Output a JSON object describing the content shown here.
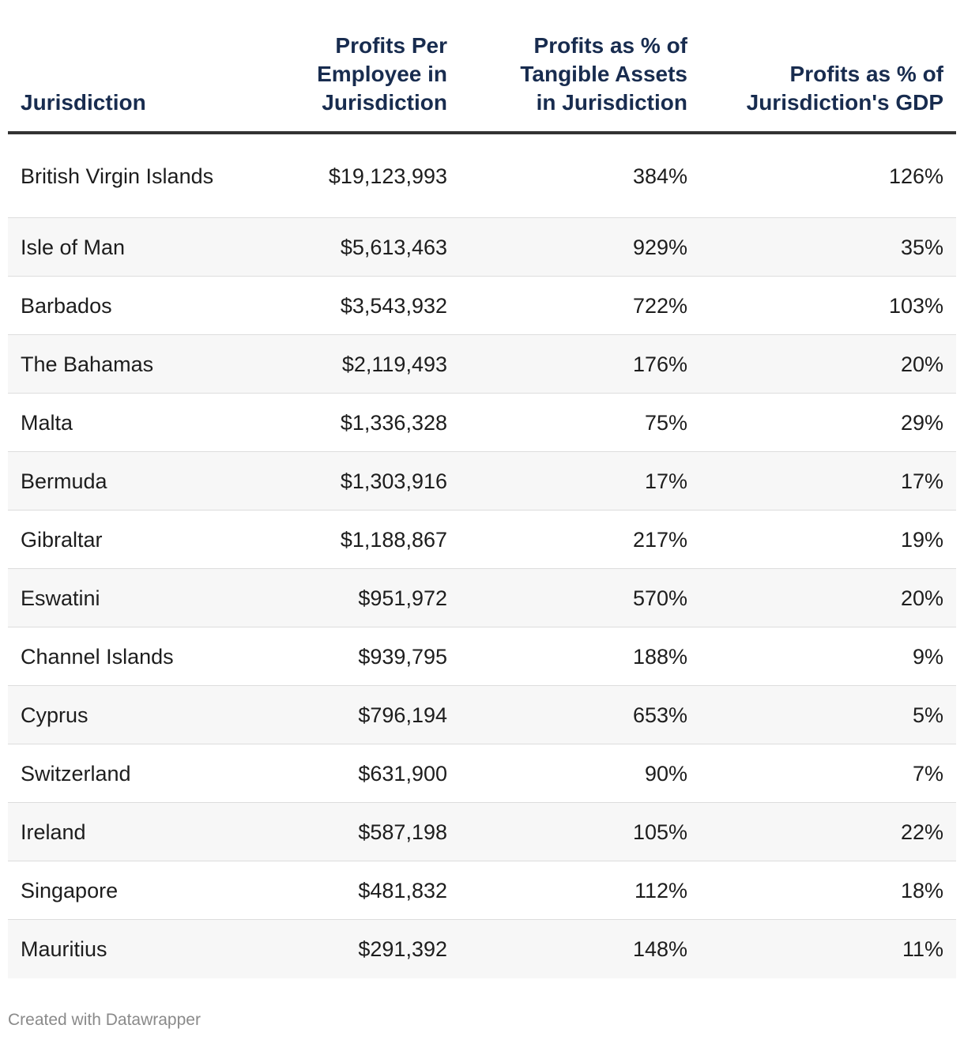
{
  "chart_data": {
    "type": "table",
    "columns": [
      "Jurisdiction",
      "Profits Per\nEmployee in\nJurisdiction",
      "Profits as % of\nTangible Assets\nin Jurisdiction",
      "Profits as % of\nJurisdiction's GDP"
    ],
    "rows": [
      {
        "jurisdiction": "British Virgin Islands",
        "profits_per_employee": "$19,123,993",
        "pct_tangible_assets": "384%",
        "pct_gdp": "126%"
      },
      {
        "jurisdiction": "Isle of Man",
        "profits_per_employee": "$5,613,463",
        "pct_tangible_assets": "929%",
        "pct_gdp": "35%"
      },
      {
        "jurisdiction": "Barbados",
        "profits_per_employee": "$3,543,932",
        "pct_tangible_assets": "722%",
        "pct_gdp": "103%"
      },
      {
        "jurisdiction": "The Bahamas",
        "profits_per_employee": "$2,119,493",
        "pct_tangible_assets": "176%",
        "pct_gdp": "20%"
      },
      {
        "jurisdiction": "Malta",
        "profits_per_employee": "$1,336,328",
        "pct_tangible_assets": "75%",
        "pct_gdp": "29%"
      },
      {
        "jurisdiction": "Bermuda",
        "profits_per_employee": "$1,303,916",
        "pct_tangible_assets": "17%",
        "pct_gdp": "17%"
      },
      {
        "jurisdiction": "Gibraltar",
        "profits_per_employee": "$1,188,867",
        "pct_tangible_assets": "217%",
        "pct_gdp": "19%"
      },
      {
        "jurisdiction": "Eswatini",
        "profits_per_employee": "$951,972",
        "pct_tangible_assets": "570%",
        "pct_gdp": "20%"
      },
      {
        "jurisdiction": "Channel Islands",
        "profits_per_employee": "$939,795",
        "pct_tangible_assets": "188%",
        "pct_gdp": "9%"
      },
      {
        "jurisdiction": "Cyprus",
        "profits_per_employee": "$796,194",
        "pct_tangible_assets": "653%",
        "pct_gdp": "5%"
      },
      {
        "jurisdiction": "Switzerland",
        "profits_per_employee": "$631,900",
        "pct_tangible_assets": "90%",
        "pct_gdp": "7%"
      },
      {
        "jurisdiction": "Ireland",
        "profits_per_employee": "$587,198",
        "pct_tangible_assets": "105%",
        "pct_gdp": "22%"
      },
      {
        "jurisdiction": "Singapore",
        "profits_per_employee": "$481,832",
        "pct_tangible_assets": "112%",
        "pct_gdp": "18%"
      },
      {
        "jurisdiction": "Mauritius",
        "profits_per_employee": "$291,392",
        "pct_tangible_assets": "148%",
        "pct_gdp": "11%"
      }
    ]
  },
  "footer": {
    "credit": "Created with Datawrapper"
  },
  "colors": {
    "header_text": "#182c4f",
    "alt_row_bg": "#f7f7f7"
  }
}
